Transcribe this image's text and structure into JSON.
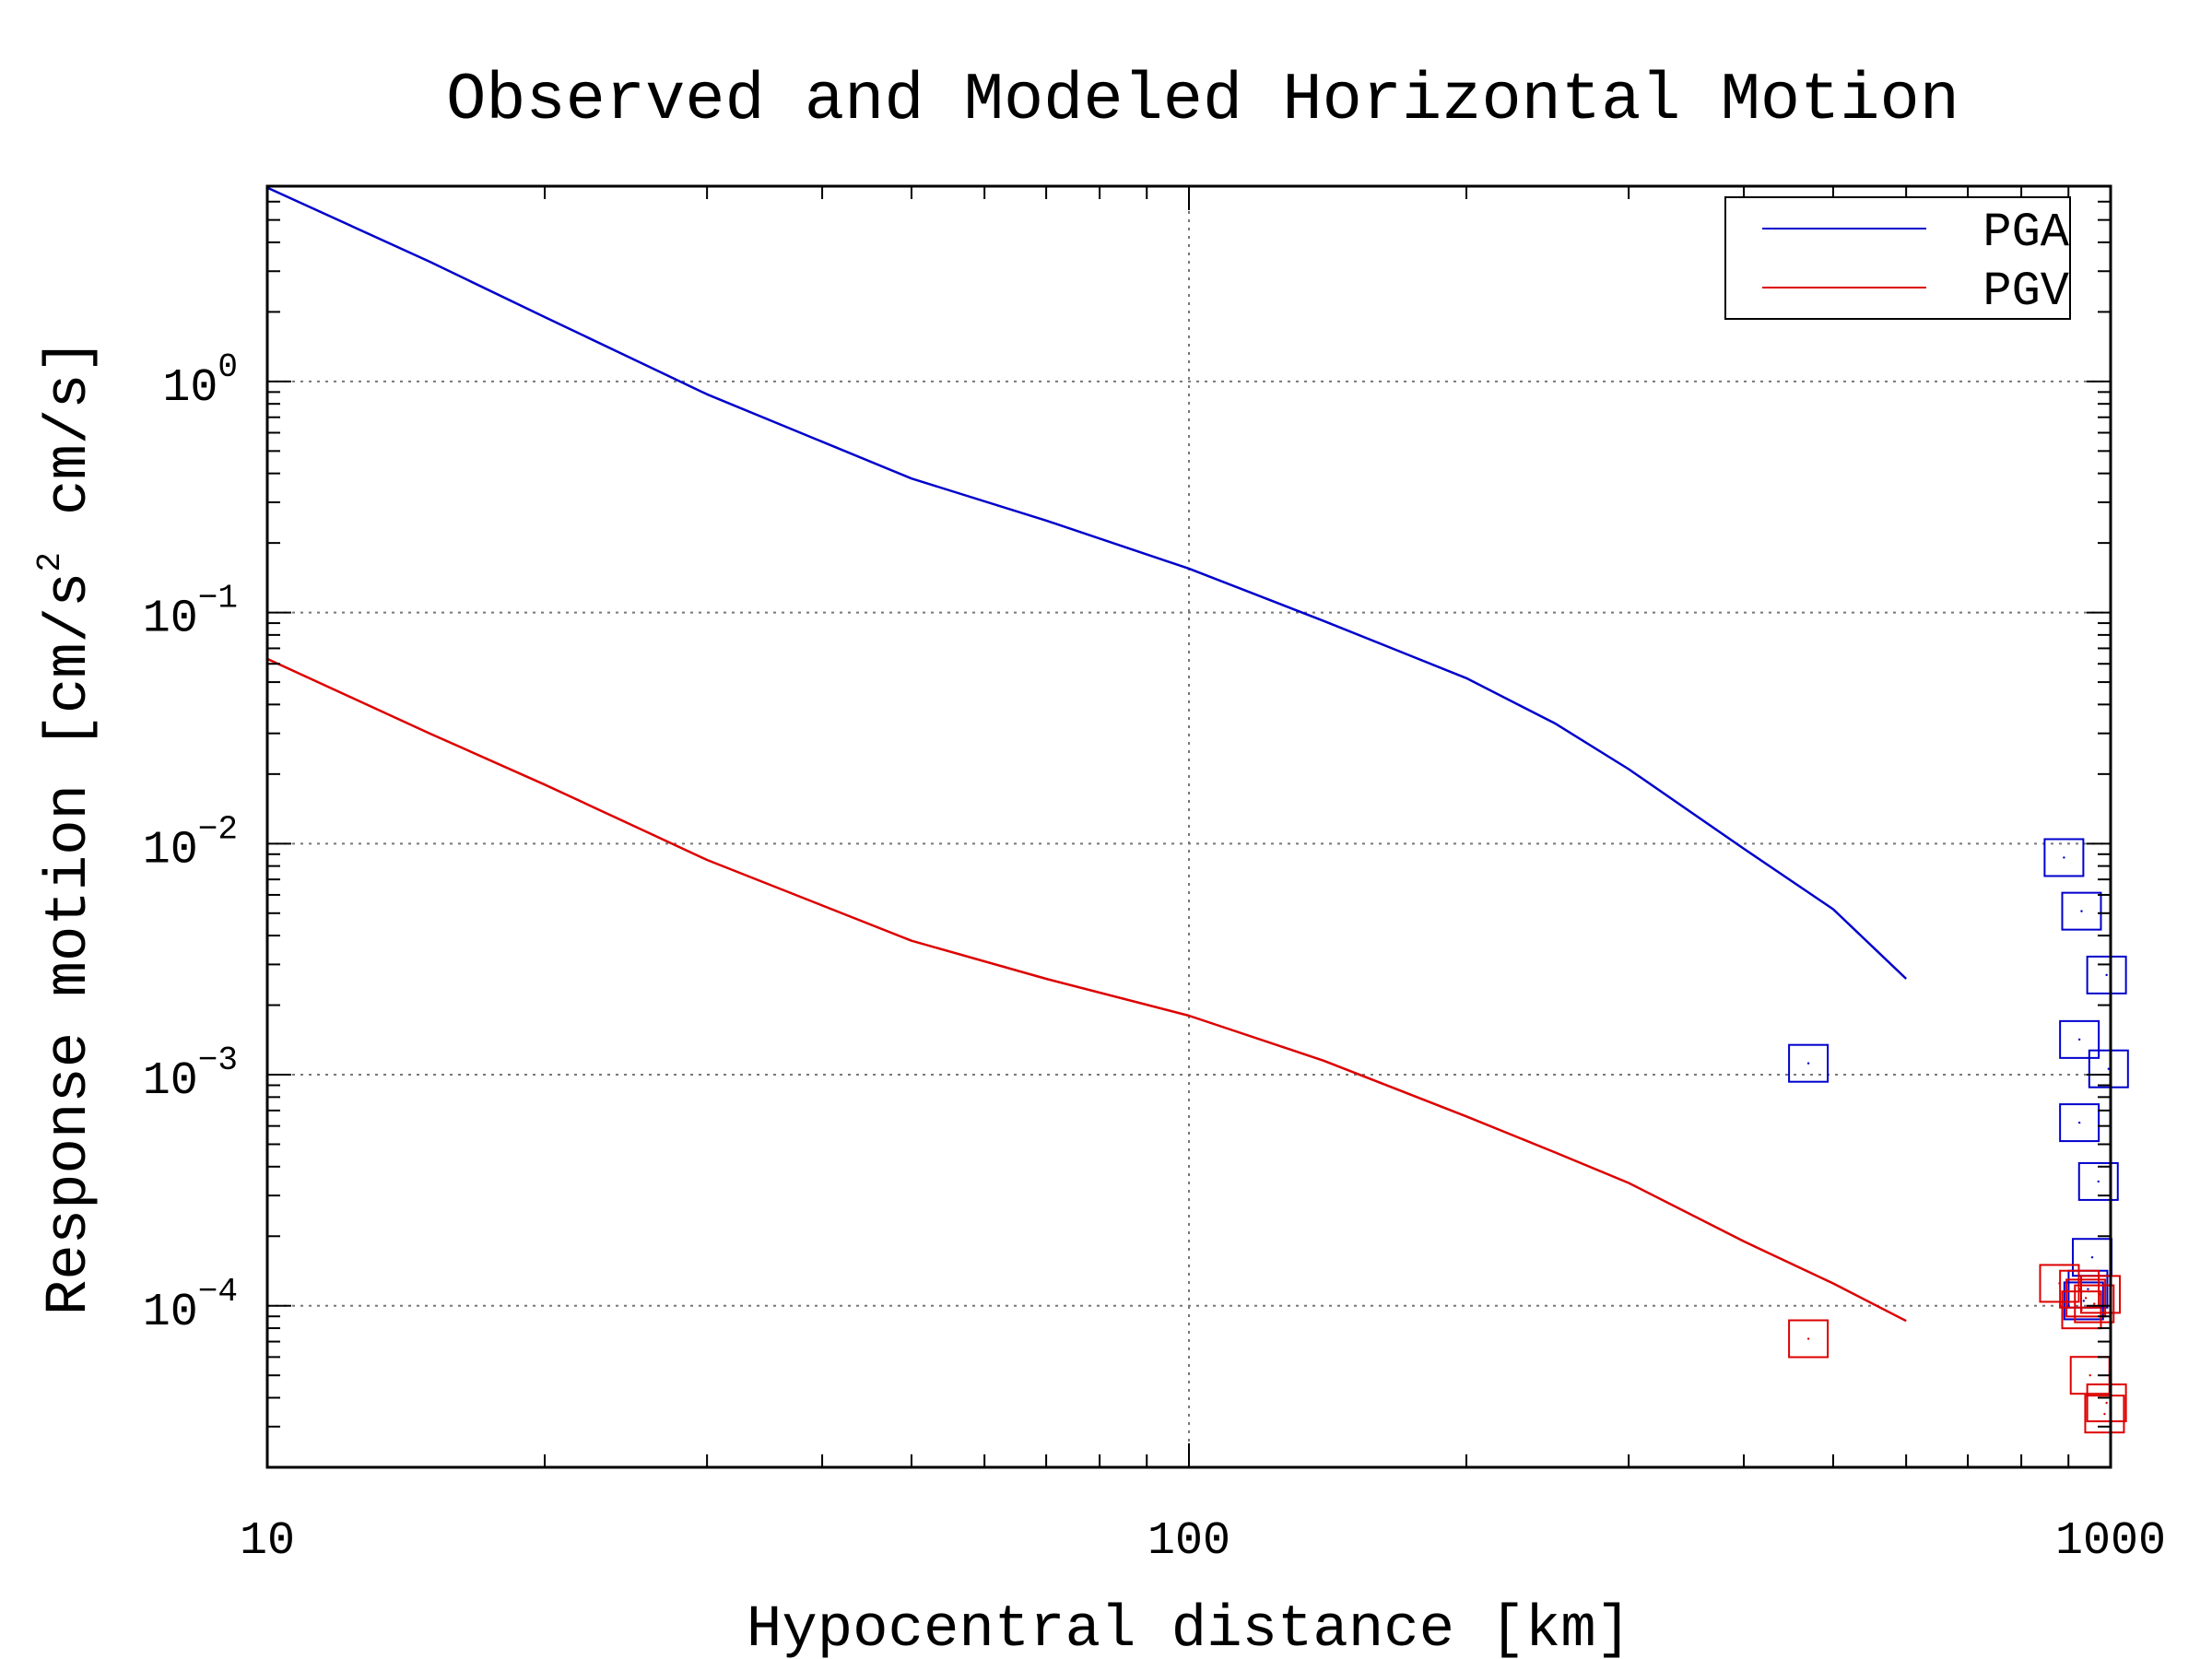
{
  "chart_data": {
    "type": "line",
    "title": "Observed and Modeled Horizontal Motion",
    "xlabel": "Hypocentral distance [km]",
    "ylabel": "Response motion [cm/s² cm/s]",
    "ylabel_parts": {
      "main": "Response motion [cm/s",
      "sup": "2",
      "tail": "cm/s]"
    },
    "xscale": "log",
    "yscale": "log",
    "xlim": [
      10,
      1000
    ],
    "ylim": [
      2e-05,
      7
    ],
    "x_ticks": [
      {
        "value": 10,
        "label": "10"
      },
      {
        "value": 100,
        "label": "100"
      },
      {
        "value": 1000,
        "label": "1000"
      }
    ],
    "y_ticks": [
      {
        "value": 1,
        "base": "10",
        "exp": "0"
      },
      {
        "value": 0.1,
        "base": "10",
        "exp": "−1"
      },
      {
        "value": 0.01,
        "base": "10",
        "exp": "−2"
      },
      {
        "value": 0.001,
        "base": "10",
        "exp": "−3"
      },
      {
        "value": 0.0001,
        "base": "10",
        "exp": "−4"
      }
    ],
    "grid": true,
    "legend": {
      "position": "top-right"
    },
    "series": [
      {
        "name": "PGA",
        "color": "#0000cc",
        "kind": "line",
        "points": [
          [
            10,
            6.9
          ],
          [
            15,
            3.3
          ],
          [
            20,
            1.9
          ],
          [
            30,
            0.88
          ],
          [
            50,
            0.38
          ],
          [
            70,
            0.25
          ],
          [
            100,
            0.155
          ],
          [
            140,
            0.092
          ],
          [
            200,
            0.052
          ],
          [
            250,
            0.033
          ],
          [
            300,
            0.021
          ],
          [
            400,
            0.0095
          ],
          [
            500,
            0.0052
          ],
          [
            600,
            0.0026
          ]
        ]
      },
      {
        "name": "PGV",
        "color": "#dd0000",
        "kind": "line",
        "points": [
          [
            10,
            0.063
          ],
          [
            15,
            0.03
          ],
          [
            20,
            0.018
          ],
          [
            30,
            0.0085
          ],
          [
            50,
            0.0038
          ],
          [
            70,
            0.0026
          ],
          [
            100,
            0.0018
          ],
          [
            140,
            0.00115
          ],
          [
            200,
            0.00066
          ],
          [
            250,
            0.00046
          ],
          [
            300,
            0.00034
          ],
          [
            400,
            0.00019
          ],
          [
            500,
            0.000125
          ],
          [
            600,
            8.6e-05
          ]
        ]
      },
      {
        "name": "",
        "color": "#0000cc",
        "kind": "observed",
        "points": [
          [
            470,
            0.00112
          ],
          [
            890,
            0.0087
          ],
          [
            930,
            0.0051
          ],
          [
            990,
            0.0027
          ],
          [
            925,
            0.00142
          ],
          [
            995,
            0.00106
          ],
          [
            925,
            0.00062
          ],
          [
            970,
            0.000345
          ],
          [
            955,
            0.000162
          ],
          [
            945,
            0.000118
          ],
          [
            935,
            0.000105
          ]
        ]
      },
      {
        "name": "",
        "color": "#dd0000",
        "kind": "observed",
        "points": [
          [
            470,
            7.2e-05
          ],
          [
            880,
            0.000125
          ],
          [
            925,
            0.000118
          ],
          [
            940,
            0.000108
          ],
          [
            960,
            0.000102
          ],
          [
            975,
            0.000112
          ],
          [
            930,
            9.6e-05
          ],
          [
            950,
            5e-05
          ],
          [
            990,
            3.8e-05
          ],
          [
            985,
            3.4e-05
          ]
        ]
      }
    ]
  }
}
